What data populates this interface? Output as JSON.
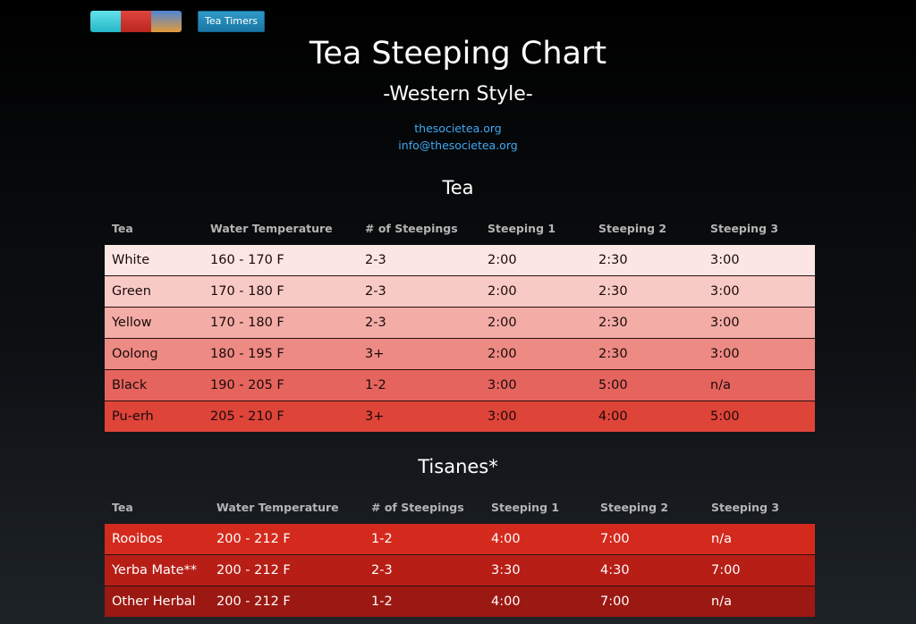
{
  "toolbar": {
    "swatches": [
      {
        "name": "cyan",
        "color": "linear-gradient(#63e2ea,#25b7c9)"
      },
      {
        "name": "red",
        "color": "linear-gradient(#e0453f,#b92620)"
      },
      {
        "name": "sunset",
        "color": "linear-gradient(#4f86d6,#e29a3b)"
      }
    ],
    "timer_label": "Tea Timers"
  },
  "header": {
    "title": "Tea Steeping Chart",
    "subtitle": "-Western Style-",
    "website": "thesocietea.org",
    "email": "info@thesocietea.org"
  },
  "tea_section": {
    "title": "Tea",
    "columns": [
      "Tea",
      "Water Temperature",
      "# of Steepings",
      "Steeping 1",
      "Steeping 2",
      "Steeping 3"
    ],
    "rows": [
      {
        "cells": [
          "White",
          "160 - 170 F",
          "2-3",
          "2:00",
          "2:30",
          "3:00"
        ],
        "color": "#fbe6e4"
      },
      {
        "cells": [
          "Green",
          "170 - 180 F",
          "2-3",
          "2:00",
          "2:30",
          "3:00"
        ],
        "color": "#f8cac5"
      },
      {
        "cells": [
          "Yellow",
          "170 - 180 F",
          "2-3",
          "2:00",
          "2:30",
          "3:00"
        ],
        "color": "#f3aca6"
      },
      {
        "cells": [
          "Oolong",
          "180 - 195 F",
          "3+",
          "2:00",
          "2:30",
          "3:00"
        ],
        "color": "#ec8a83"
      },
      {
        "cells": [
          "Black",
          "190 - 205 F",
          "1-2",
          "3:00",
          "5:00",
          "n/a"
        ],
        "color": "#e5655e"
      },
      {
        "cells": [
          "Pu-erh",
          "205 - 210 F",
          "3+",
          "3:00",
          "4:00",
          "5:00"
        ],
        "color": "#df4439"
      }
    ]
  },
  "tisane_section": {
    "title": "Tisanes*",
    "columns": [
      "Tea",
      "Water Temperature",
      "# of Steepings",
      "Steeping 1",
      "Steeping 2",
      "Steeping 3"
    ],
    "rows": [
      {
        "cells": [
          "Rooibos",
          "200 - 212 F",
          "1-2",
          "4:00",
          "7:00",
          "n/a"
        ],
        "color": "#d42a1d"
      },
      {
        "cells": [
          "Yerba Mate**",
          "200 - 212 F",
          "2-3",
          "3:30",
          "4:30",
          "7:00"
        ],
        "color": "#b71e16"
      },
      {
        "cells": [
          "Other Herbal",
          "200 - 212 F",
          "1-2",
          "4:00",
          "7:00",
          "n/a"
        ],
        "color": "#9c1812"
      }
    ]
  }
}
